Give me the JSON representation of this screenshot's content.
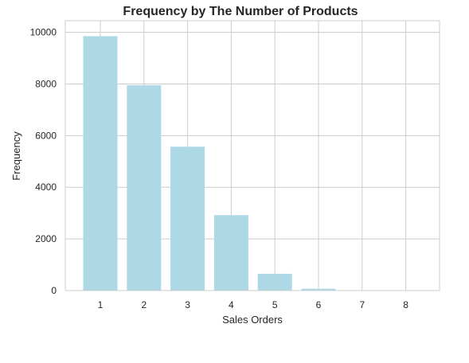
{
  "chart_data": {
    "type": "bar",
    "title": "Frequency by The Number of Products",
    "xlabel": "Sales Orders",
    "ylabel": "Frequency",
    "categories": [
      "1",
      "2",
      "3",
      "4",
      "5",
      "6",
      "7",
      "8"
    ],
    "values": [
      9850,
      7950,
      5570,
      2920,
      650,
      70,
      10,
      5
    ],
    "ylim": [
      0,
      10450
    ],
    "yticks": [
      0,
      2000,
      4000,
      6000,
      8000,
      10000
    ],
    "ytick_labels": [
      "0",
      "2000",
      "4000",
      "6000",
      "8000",
      "10000"
    ],
    "grid": true,
    "bar_color": "#add8e6",
    "grid_color": "#cccccc"
  }
}
